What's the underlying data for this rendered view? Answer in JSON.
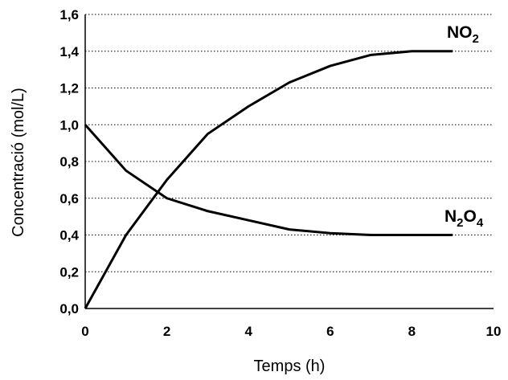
{
  "chart_data": {
    "type": "line",
    "xlabel": "Temps (h)",
    "ylabel": "Concentració (mol/L)",
    "xlim": [
      0,
      10
    ],
    "ylim": [
      0,
      1.6
    ],
    "x_ticks": [
      "0",
      "2",
      "4",
      "6",
      "8",
      "10"
    ],
    "y_ticks": [
      "0,0",
      "0,2",
      "0,4",
      "0,6",
      "0,8",
      "1,0",
      "1,2",
      "1,4",
      "1,6"
    ],
    "grid": "horizontal dotted",
    "series": [
      {
        "name": "NO2",
        "label_main": "NO",
        "label_sub": "2",
        "x": [
          0,
          1,
          2,
          3,
          4,
          5,
          6,
          7,
          8,
          9
        ],
        "values": [
          0.0,
          0.4,
          0.7,
          0.95,
          1.1,
          1.23,
          1.32,
          1.38,
          1.4,
          1.4
        ]
      },
      {
        "name": "N2O4",
        "label_parts": [
          "N",
          "2",
          "O",
          "4"
        ],
        "x": [
          0,
          1,
          2,
          3,
          4,
          5,
          6,
          7,
          8,
          9
        ],
        "values": [
          1.0,
          0.75,
          0.6,
          0.53,
          0.48,
          0.43,
          0.41,
          0.4,
          0.4,
          0.4
        ]
      }
    ]
  }
}
